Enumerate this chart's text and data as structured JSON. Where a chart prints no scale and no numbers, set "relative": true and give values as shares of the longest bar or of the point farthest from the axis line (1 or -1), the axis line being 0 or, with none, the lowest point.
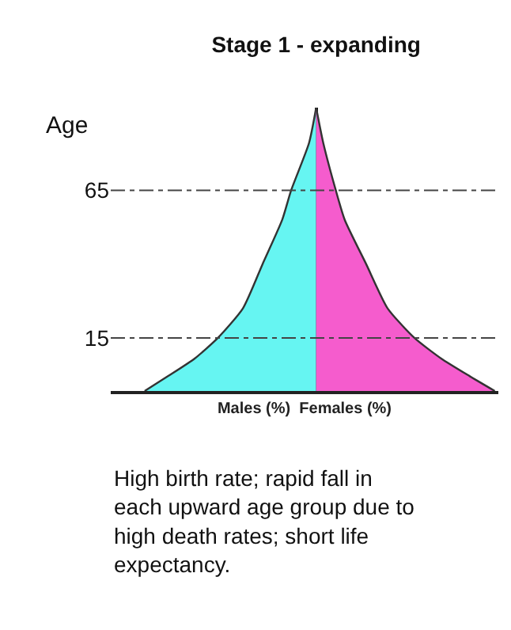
{
  "chart_data": {
    "type": "area",
    "orientation": "horizontal",
    "relative": true,
    "title": "Stage 1 - expanding",
    "xlabel": "Males (%)  Females (%)",
    "ylabel": "Age",
    "x": [
      -3,
      2,
      8,
      15,
      25,
      40,
      55,
      65,
      81,
      93
    ],
    "series": [
      {
        "color": "#66f5f2",
        "values": [
          -0.96,
          -0.83,
          -0.68,
          -0.55,
          -0.41,
          -0.3,
          -0.19,
          -0.14,
          -0.04,
          0
        ]
      },
      {
        "color": "#f55ccd",
        "values": [
          1,
          0.86,
          0.7,
          0.55,
          0.4,
          0.28,
          0.16,
          0.11,
          0.04,
          0
        ]
      }
    ],
    "ylim": [
      -3,
      93
    ],
    "yticks": [
      15,
      65
    ],
    "ref_lines": [
      {
        "axis": "y",
        "value": 15,
        "line_style": "dashdot",
        "color": "#444444"
      },
      {
        "axis": "y",
        "value": 65,
        "line_style": "dashdot",
        "color": "#444444"
      }
    ],
    "annotations": [
      "High birth rate; rapid fall in each upward age group due to high death rates; short life expectancy."
    ]
  }
}
